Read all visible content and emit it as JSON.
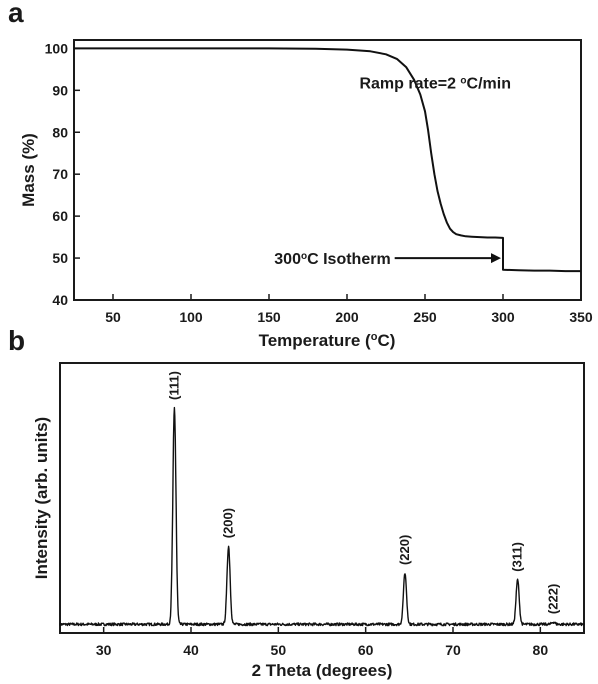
{
  "chart_data": [
    {
      "panel": "a",
      "type": "line",
      "title": "",
      "xlabel": "Temperature (°C)",
      "xlabel_parts": {
        "pre": "Temperature (",
        "sup": "o",
        "post": "C)"
      },
      "ylabel": "Mass (%)",
      "xlim": [
        25,
        350
      ],
      "ylim": [
        40,
        102
      ],
      "xticks": [
        50,
        100,
        150,
        200,
        250,
        300,
        350
      ],
      "yticks": [
        40,
        50,
        60,
        70,
        80,
        90,
        100
      ],
      "grid": false,
      "series": [
        {
          "x": [
            25,
            100,
            150,
            180,
            200,
            215,
            225,
            232,
            238,
            243,
            247,
            250,
            252,
            254,
            256,
            258,
            260,
            262,
            264,
            266,
            268,
            270,
            273,
            276,
            280,
            285,
            290,
            295,
            300,
            300,
            310,
            320,
            330,
            340,
            350
          ],
          "y": [
            100,
            100,
            100,
            99.9,
            99.7,
            99.3,
            98.6,
            97.5,
            95.5,
            92.5,
            89,
            85,
            80.5,
            75,
            70,
            66,
            63,
            60.5,
            58.5,
            57,
            56.2,
            55.7,
            55.4,
            55.2,
            55.1,
            55,
            54.9,
            54.9,
            54.8,
            47.2,
            47.1,
            47,
            47,
            46.9,
            46.9
          ]
        }
      ],
      "annotations": [
        {
          "pre": "Ramp rate=2 ",
          "sup": "o",
          "post": "C/min",
          "x": 208,
          "y": 90
        },
        {
          "pre": "300",
          "sup": "o",
          "post": "C Isotherm",
          "x": 228,
          "y": 50,
          "arrow_to": {
            "x": 300,
            "y": 50
          }
        }
      ]
    },
    {
      "panel": "b",
      "type": "line",
      "title": "",
      "xlabel": "2 Theta (degrees)",
      "ylabel": "Intensity (arb. units)",
      "xlim": [
        25,
        85
      ],
      "ylim": [
        0,
        100
      ],
      "xticks": [
        30,
        40,
        50,
        60,
        70,
        80
      ],
      "yticks": [],
      "grid": false,
      "baseline": 3,
      "peaks": [
        {
          "x": 38.1,
          "height": 100,
          "label": "(111)"
        },
        {
          "x": 44.3,
          "height": 38,
          "label": "(200)"
        },
        {
          "x": 64.5,
          "height": 26,
          "label": "(220)"
        },
        {
          "x": 77.4,
          "height": 23,
          "label": "(311)"
        },
        {
          "x": 81.5,
          "height": 4,
          "label": "(222)"
        }
      ]
    }
  ]
}
